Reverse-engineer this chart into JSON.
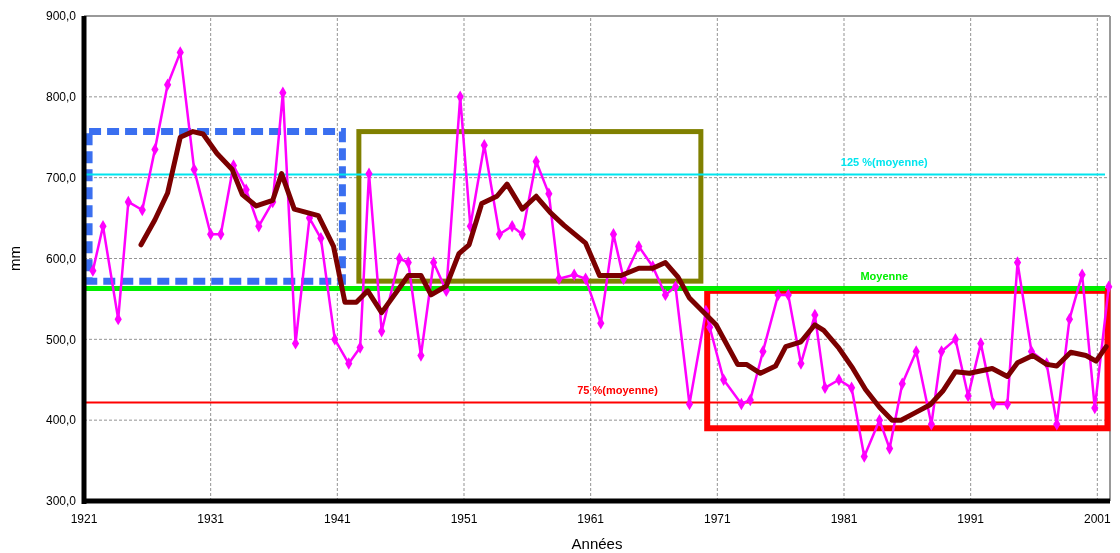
{
  "chart_data": {
    "type": "line",
    "xlabel": "Années",
    "ylabel": "mm",
    "xlim": [
      1921,
      2002
    ],
    "xticks": [
      1921,
      1931,
      1941,
      1951,
      1961,
      1971,
      1981,
      1991,
      2001
    ],
    "ylim": [
      300,
      900
    ],
    "yticks": [
      {
        "value": 300,
        "label": "300,0"
      },
      {
        "value": 400,
        "label": "400,0"
      },
      {
        "value": 500,
        "label": "500,0"
      },
      {
        "value": 600,
        "label": "600,0"
      },
      {
        "value": 700,
        "label": "700,0"
      },
      {
        "value": 800,
        "label": "800,0"
      },
      {
        "value": 900,
        "label": "900,0"
      }
    ],
    "grid": true,
    "series": [
      {
        "color": "#ff00ff",
        "marker": "diamond",
        "x": [
          1921.7,
          1922.5,
          1923.7,
          1924.5,
          1925.6,
          1926.6,
          1927.6,
          1928.6,
          1929.7,
          1931,
          1931.8,
          1932.8,
          1933.8,
          1934.8,
          1935.9,
          1936.7,
          1937.7,
          1938.8,
          1939.7,
          1940.8,
          1941.9,
          1942.8,
          1943.5,
          1944.5,
          1945.9,
          1946.6,
          1947.6,
          1948.6,
          1949.6,
          1950.7,
          1951.5,
          1952.6,
          1953.8,
          1954.8,
          1955.6,
          1956.7,
          1957.7,
          1958.5,
          1959.7,
          1960.6,
          1961.8,
          1962.8,
          1963.6,
          1964.8,
          1965.9,
          1966.9,
          1967.7,
          1968.8,
          1970.1,
          1970.4,
          1971.5,
          1972.9,
          1973.6,
          1974.6,
          1975.8,
          1976.6,
          1977.6,
          1978.7,
          1979.5,
          1980.6,
          1981.6,
          1982.6,
          1983.8,
          1984.6,
          1985.6,
          1986.7,
          1987.9,
          1988.7,
          1989.8,
          1990.8,
          1991.8,
          1992.8,
          1993.9,
          1994.7,
          1995.8,
          1997,
          1997.8,
          1998.8,
          1999.8,
          2000.8,
          2001.9
        ],
        "values": [
          585,
          640,
          525,
          670,
          660,
          735,
          815,
          855,
          710,
          630,
          630,
          715,
          685,
          640,
          670,
          805,
          495,
          650,
          625,
          500,
          470,
          490,
          705,
          510,
          600,
          595,
          480,
          595,
          560,
          800,
          640,
          740,
          630,
          640,
          630,
          720,
          680,
          575,
          580,
          575,
          520,
          630,
          575,
          615,
          590,
          555,
          565,
          420,
          535,
          515,
          450,
          420,
          425,
          485,
          555,
          555,
          470,
          530,
          440,
          450,
          440,
          355,
          400,
          365,
          445,
          485,
          395,
          485,
          500,
          430,
          495,
          420,
          420,
          595,
          485,
          470,
          395,
          525,
          580,
          415,
          565
        ]
      },
      {
        "color": "#7b0000",
        "x": [
          1925.5,
          1926.6,
          1927.6,
          1928.6,
          1929.6,
          1930.4,
          1931.5,
          1932.7,
          1933.5,
          1934.6,
          1935.9,
          1936.6,
          1937.6,
          1939.5,
          1940.7,
          1941.6,
          1942.5,
          1943.4,
          1944.5,
          1946.6,
          1947.6,
          1948.4,
          1949.6,
          1950.6,
          1951.4,
          1952.4,
          1953.6,
          1954.4,
          1955.6,
          1956.7,
          1957.8,
          1958.9,
          1960.6,
          1961.7,
          1963.4,
          1964.8,
          1965.9,
          1966.9,
          1967.9,
          1968.8,
          1970.9,
          1972.6,
          1973.3,
          1974.4,
          1975.6,
          1976.4,
          1977.6,
          1978.7,
          1979.4,
          1980.6,
          1981.7,
          1982.7,
          1983.8,
          1984.8,
          1985.5,
          1986.6,
          1987.8,
          1988.8,
          1989.8,
          1990.9,
          1992.7,
          1993.9,
          1994.7,
          1995.9,
          1997,
          1997.8,
          1998.9,
          2000.1,
          2000.9,
          2001.7
        ],
        "values": [
          617,
          648,
          681,
          750,
          757,
          754,
          730,
          710,
          679,
          665,
          672,
          705,
          661,
          653,
          615,
          546,
          546,
          560,
          533,
          579,
          579,
          555,
          566,
          606,
          617,
          668,
          677,
          692,
          661,
          677,
          657,
          641,
          619,
          579,
          579,
          588,
          588,
          595,
          577,
          551,
          518,
          469,
          469,
          458,
          467,
          491,
          497,
          518,
          511,
          489,
          464,
          438,
          416,
          400,
          400,
          409,
          419,
          436,
          460,
          458,
          464,
          454,
          471,
          480,
          469,
          467,
          484,
          480,
          473,
          491
        ]
      }
    ],
    "ref_lines": [
      {
        "axis": "y",
        "value": 704,
        "label": "125 %(moyenne)",
        "color": "#00e5ee"
      },
      {
        "axis": "y",
        "value": 563,
        "label": "Moyenne",
        "color": "#00ee00"
      },
      {
        "axis": "y",
        "value": 422,
        "label": "75 %(moyenne)",
        "color": "#ff0000"
      }
    ]
  }
}
